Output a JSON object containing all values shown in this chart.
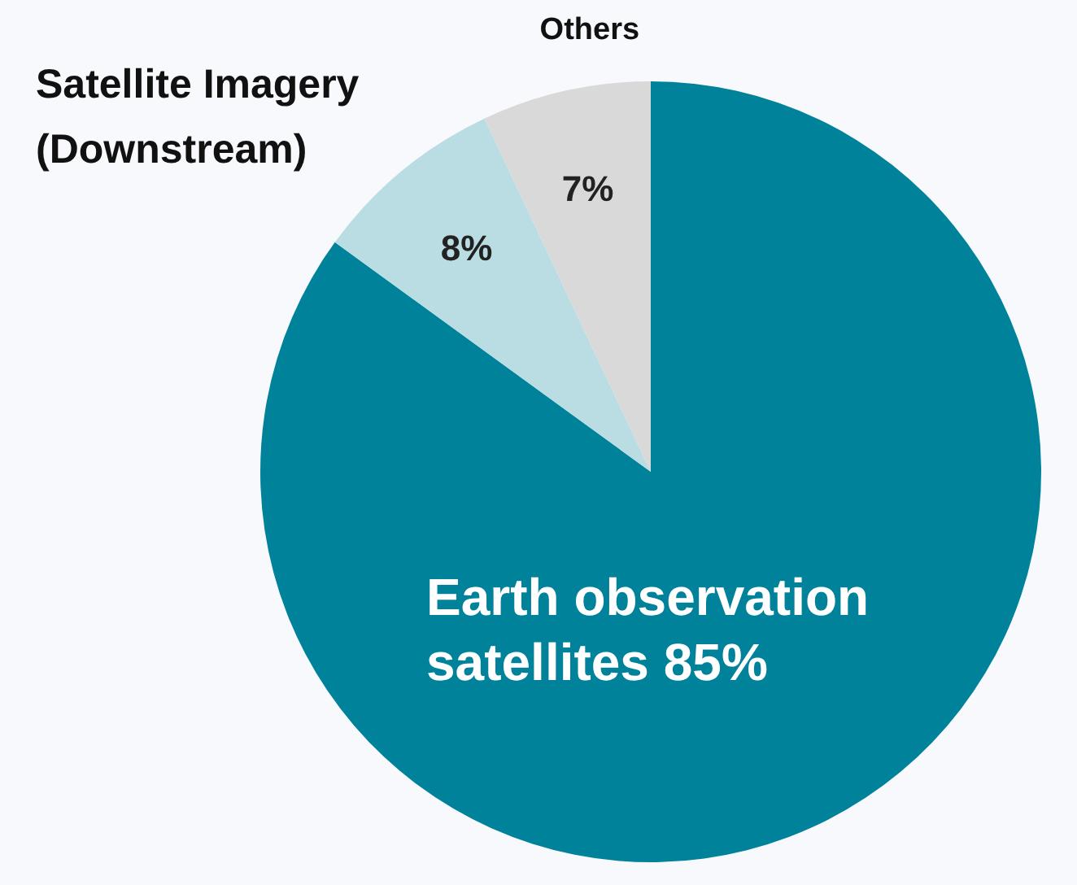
{
  "chart_data": {
    "type": "pie",
    "categories": [
      "Earth observation satellites",
      "Satellite Imagery (Downstream)",
      "Others"
    ],
    "values": [
      85,
      8,
      7
    ],
    "colors": [
      "#00829b",
      "#b9dde3",
      "#d9d9d9"
    ],
    "value_labels": [
      "85%",
      "8%",
      "7%"
    ]
  }
}
